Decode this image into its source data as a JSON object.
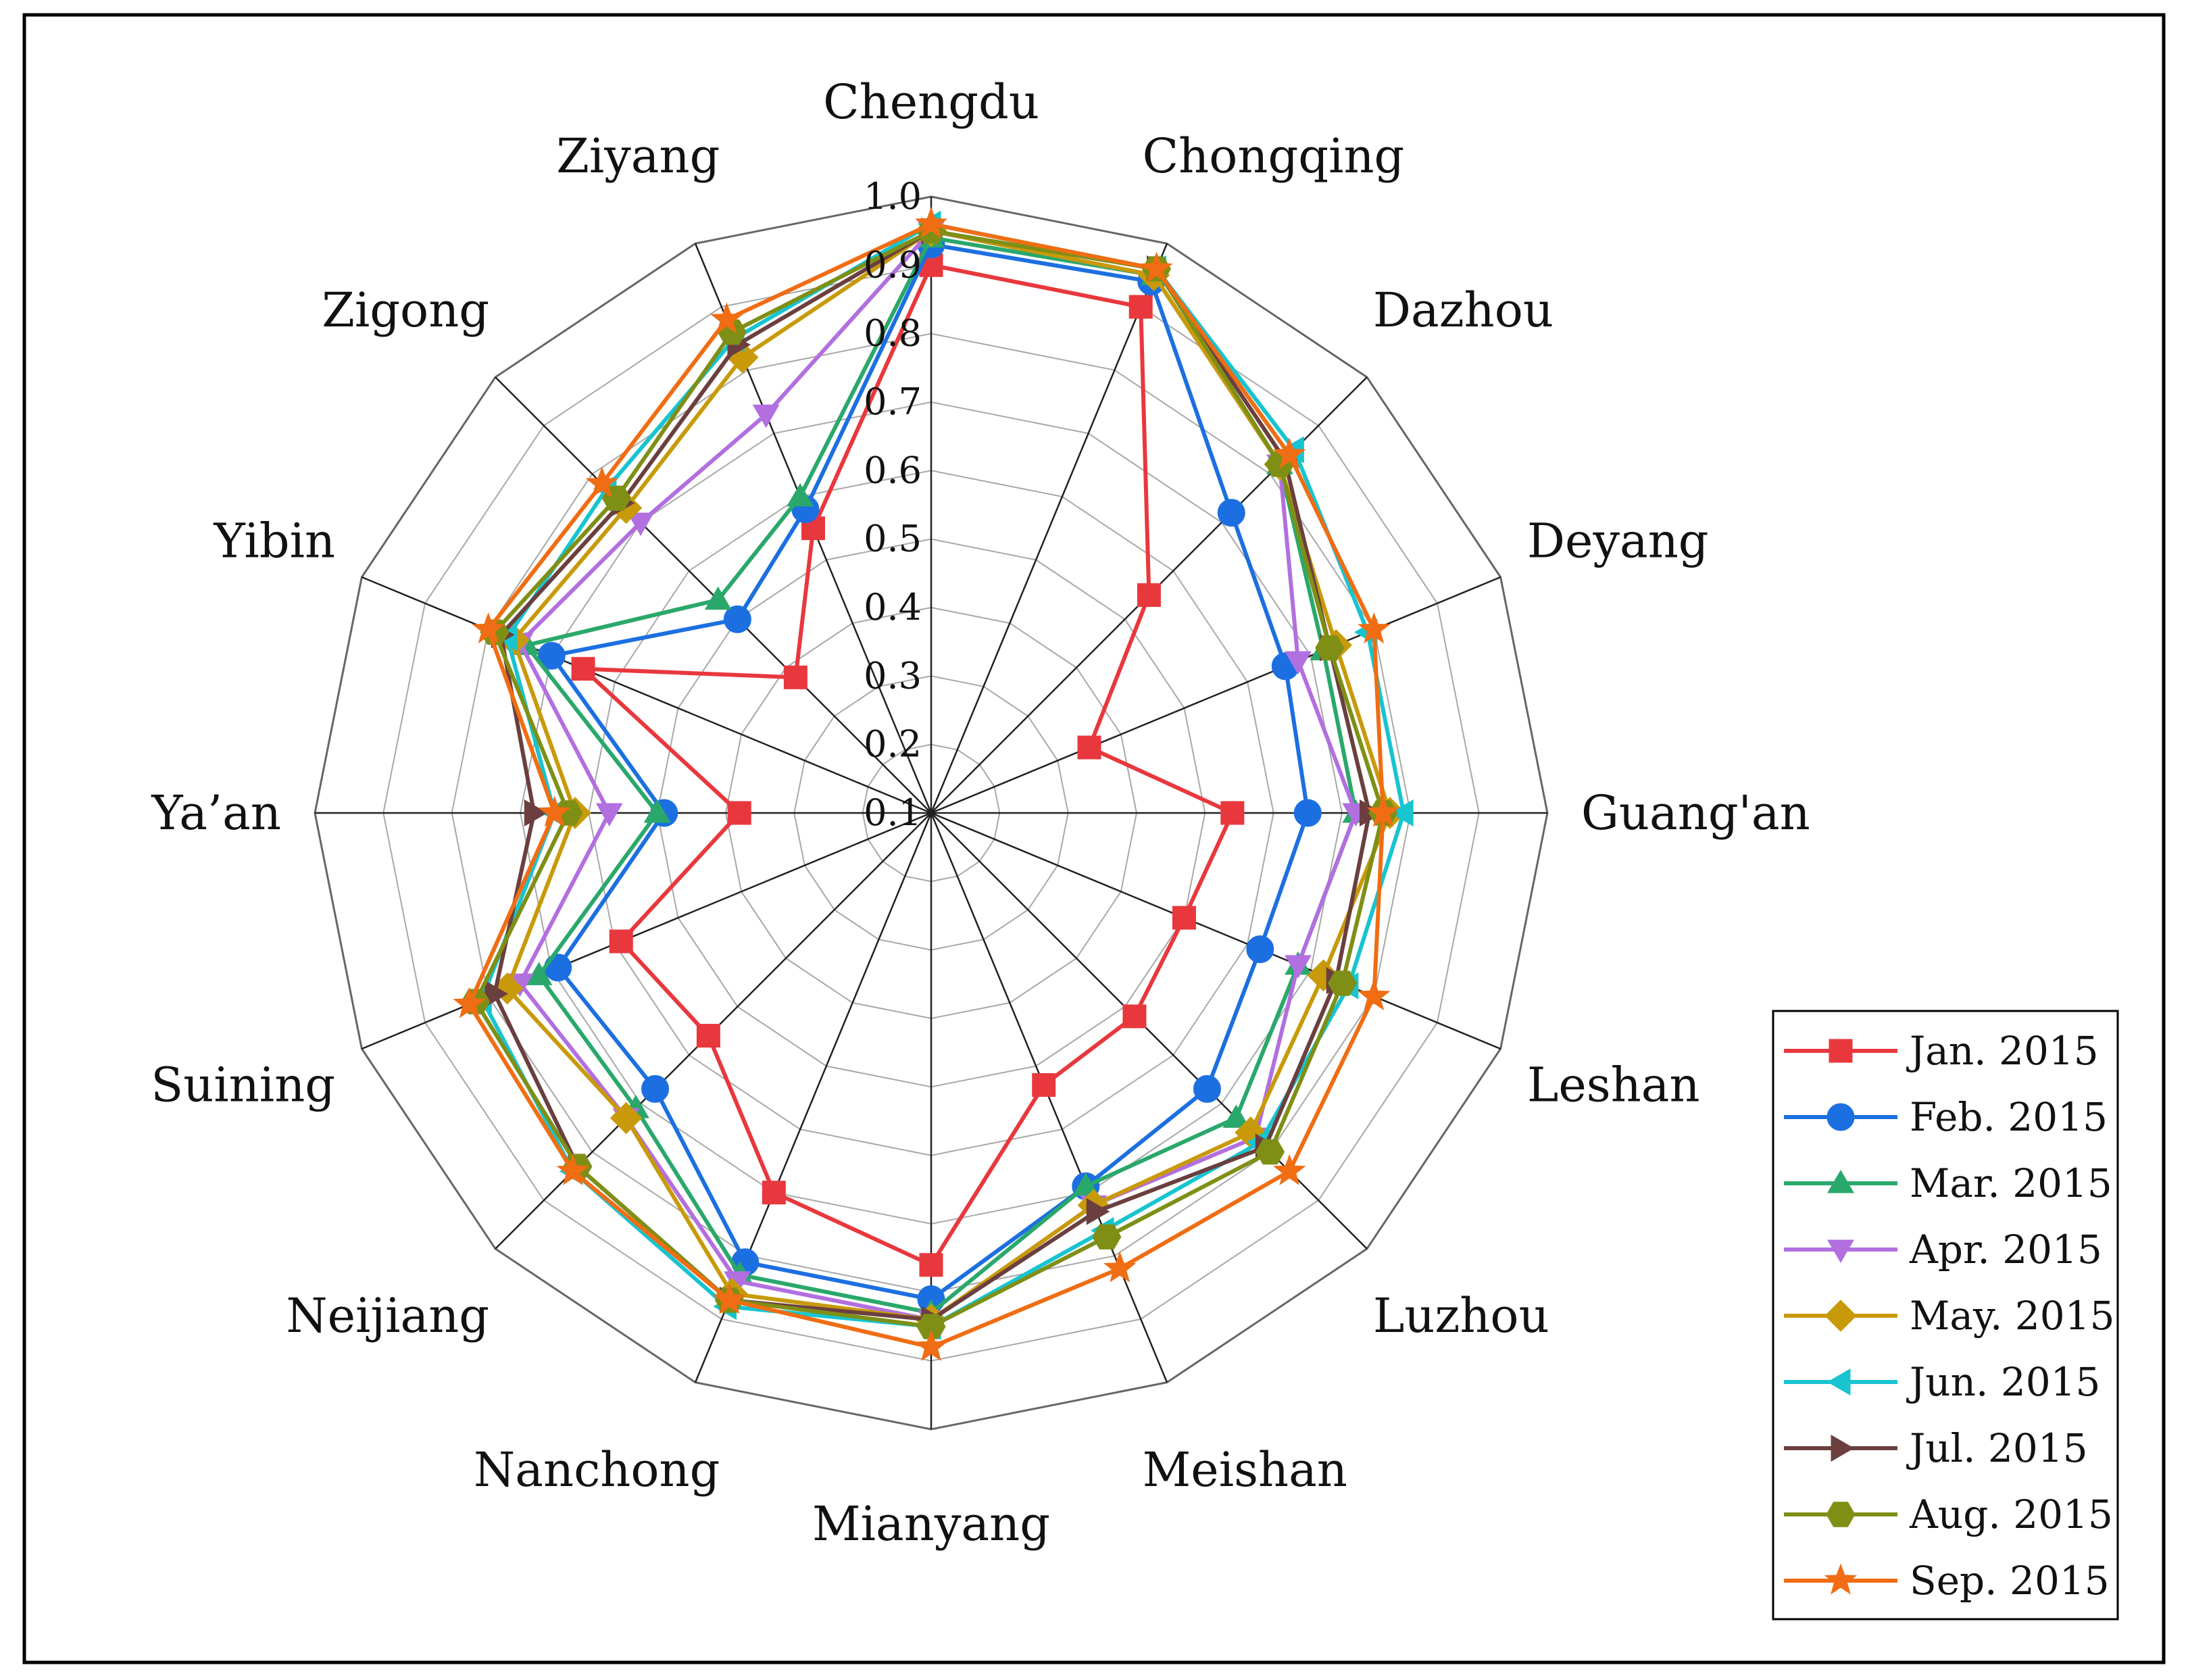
{
  "chart_data": {
    "type": "radar",
    "categories": [
      "Chengdu",
      "Chongqing",
      "Dazhou",
      "Deyang",
      "Guang'an",
      "Leshan",
      "Luzhou",
      "Meishan",
      "Mianyang",
      "Nanchong",
      "Neijiang",
      "Suining",
      "Ya’an",
      "Yibin",
      "Zigong",
      "Ziyang"
    ],
    "ylim": [
      0.1,
      1.0
    ],
    "ticks": [
      "0.1",
      "0.2",
      "0.3",
      "0.4",
      "0.5",
      "0.6",
      "0.7",
      "0.8",
      "0.9",
      "1.0"
    ],
    "grid": true,
    "legend_position": "bottom-right",
    "series": [
      {
        "name": "Jan. 2015",
        "color": "#e8383d",
        "marker": "square",
        "values": [
          0.9,
          0.9,
          0.55,
          0.35,
          0.54,
          0.5,
          0.52,
          0.53,
          0.76,
          0.7,
          0.56,
          0.59,
          0.38,
          0.65,
          0.38,
          0.55
        ]
      },
      {
        "name": "Feb. 2015",
        "color": "#1c6fe0",
        "marker": "circle",
        "values": [
          0.93,
          0.94,
          0.72,
          0.66,
          0.65,
          0.62,
          0.67,
          0.69,
          0.81,
          0.81,
          0.67,
          0.69,
          0.49,
          0.7,
          0.5,
          0.58
        ]
      },
      {
        "name": "Mar. 2015",
        "color": "#2aa86b",
        "marker": "triangle-up",
        "values": [
          0.94,
          0.95,
          0.82,
          0.72,
          0.72,
          0.68,
          0.73,
          0.69,
          0.83,
          0.83,
          0.71,
          0.72,
          0.5,
          0.74,
          0.54,
          0.6
        ]
      },
      {
        "name": "Apr. 2015",
        "color": "#b26fe0",
        "marker": "triangle-down",
        "values": [
          0.95,
          0.95,
          0.82,
          0.68,
          0.72,
          0.68,
          0.77,
          0.72,
          0.84,
          0.84,
          0.73,
          0.75,
          0.57,
          0.75,
          0.7,
          0.73
        ]
      },
      {
        "name": "May. 2015",
        "color": "#c89a0a",
        "marker": "diamond",
        "values": [
          0.95,
          0.95,
          0.82,
          0.74,
          0.77,
          0.72,
          0.76,
          0.72,
          0.84,
          0.86,
          0.73,
          0.77,
          0.62,
          0.76,
          0.73,
          0.82
        ]
      },
      {
        "name": "Jun. 2015",
        "color": "#17c4d0",
        "marker": "triangle-left",
        "values": [
          0.96,
          0.96,
          0.85,
          0.79,
          0.79,
          0.76,
          0.78,
          0.76,
          0.85,
          0.88,
          0.84,
          0.81,
          0.65,
          0.77,
          0.77,
          0.85
        ]
      },
      {
        "name": "Jul. 2015",
        "color": "#6b3f3f",
        "marker": "triangle-right",
        "values": [
          0.95,
          0.96,
          0.83,
          0.73,
          0.74,
          0.74,
          0.79,
          0.73,
          0.84,
          0.87,
          0.83,
          0.79,
          0.68,
          0.78,
          0.74,
          0.84
        ]
      },
      {
        "name": "Aug. 2015",
        "color": "#7f8f16",
        "marker": "hexagon",
        "values": [
          0.95,
          0.96,
          0.82,
          0.73,
          0.76,
          0.75,
          0.8,
          0.77,
          0.85,
          0.87,
          0.83,
          0.82,
          0.63,
          0.79,
          0.75,
          0.86
        ]
      },
      {
        "name": "Sep. 2015",
        "color": "#f06d13",
        "marker": "star",
        "values": [
          0.96,
          0.96,
          0.84,
          0.8,
          0.76,
          0.8,
          0.84,
          0.82,
          0.88,
          0.87,
          0.84,
          0.83,
          0.65,
          0.8,
          0.78,
          0.88
        ]
      }
    ]
  }
}
